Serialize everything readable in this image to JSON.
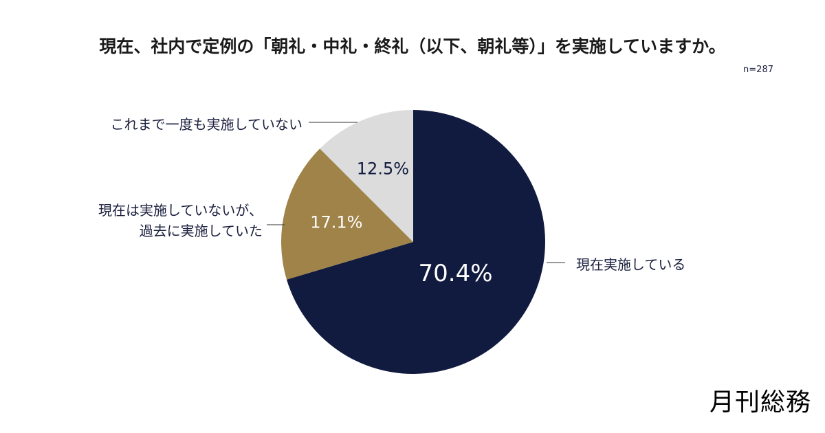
{
  "title": "現在、社内で定例の「朝礼・中礼・終礼（以下、朝礼等）」を実施していますか。",
  "sample_size": "n=287",
  "brand": "月刊総務",
  "colors": {
    "navy": "#111b3f",
    "gold": "#a08349",
    "grey": "#dcdcdc",
    "white_text": "#ffffff",
    "dark_text": "#111b3f"
  },
  "chart_data": {
    "type": "pie",
    "title": "現在、社内で定例の「朝礼・中礼・終礼（以下、朝礼等）」を実施していますか。",
    "start": "12 o'clock",
    "direction": "clockwise",
    "slices": [
      {
        "label": "現在実施している",
        "value": 70.4,
        "value_label": "70.4%",
        "color": "#111b3f"
      },
      {
        "label": "現在は実施していないが、過去に実施していた",
        "value": 17.1,
        "value_label": "17.1%",
        "color": "#a08349"
      },
      {
        "label": "これまで一度も実施していない",
        "value": 12.5,
        "value_label": "12.5%",
        "color": "#dcdcdc"
      }
    ]
  },
  "labels": {
    "implementing": "現在実施している",
    "past_line1": "現在は実施していないが、",
    "past_line2": "過去に実施していた",
    "never": "これまで一度も実施していない"
  }
}
